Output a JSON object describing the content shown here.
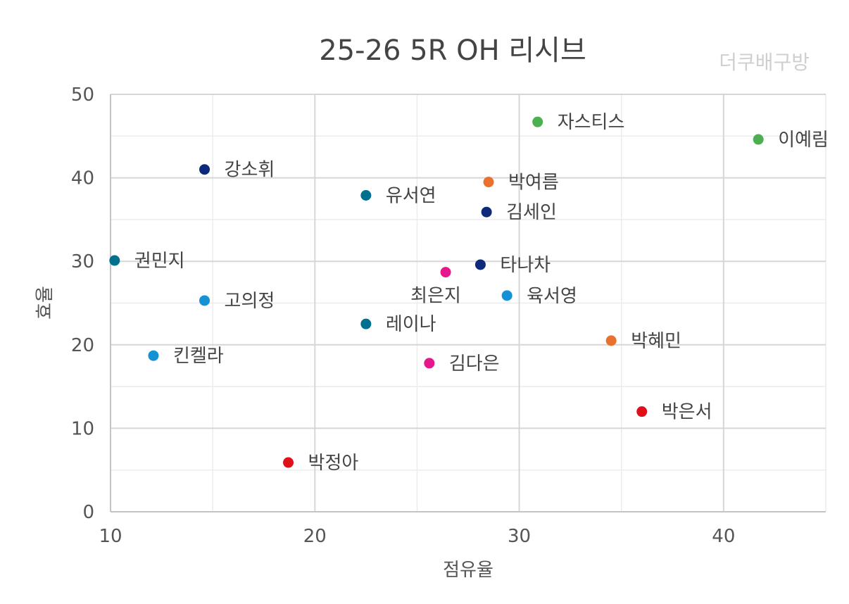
{
  "chart_data": {
    "type": "scatter",
    "title": "25-26 5R OH 리시브",
    "watermark": "더쿠배구방",
    "xlabel": "점유율",
    "ylabel": "효율",
    "xlim": [
      10,
      45
    ],
    "ylim": [
      0,
      50
    ],
    "x_ticks": [
      10,
      20,
      30,
      40
    ],
    "y_ticks": [
      0,
      10,
      20,
      30,
      40,
      50
    ],
    "x_minor_gridlines": [
      15,
      25,
      35,
      45
    ],
    "y_minor_gridlines": [
      5,
      15,
      25,
      35,
      45
    ],
    "grid": true,
    "points": [
      {
        "label": "자스티스",
        "x": 30.9,
        "y": 46.7,
        "color": "#4caf50"
      },
      {
        "label": "이예림",
        "x": 41.7,
        "y": 44.6,
        "color": "#4caf50"
      },
      {
        "label": "강소휘",
        "x": 14.6,
        "y": 41.0,
        "color": "#0d2a7a"
      },
      {
        "label": "박여름",
        "x": 28.5,
        "y": 39.5,
        "color": "#e8712e"
      },
      {
        "label": "유서연",
        "x": 22.5,
        "y": 37.9,
        "color": "#00708f"
      },
      {
        "label": "김세인",
        "x": 28.4,
        "y": 35.9,
        "color": "#0d2a7a"
      },
      {
        "label": "권민지",
        "x": 10.2,
        "y": 30.1,
        "color": "#00708f"
      },
      {
        "label": "타나차",
        "x": 28.1,
        "y": 29.6,
        "color": "#0d2a7a"
      },
      {
        "label": "최은지",
        "x": 26.4,
        "y": 28.7,
        "color": "#e6178c"
      },
      {
        "label": "육서영",
        "x": 29.4,
        "y": 25.9,
        "color": "#1591d6"
      },
      {
        "label": "고의정",
        "x": 14.6,
        "y": 25.3,
        "color": "#1591d6"
      },
      {
        "label": "레이나",
        "x": 22.5,
        "y": 22.5,
        "color": "#00708f"
      },
      {
        "label": "박혜민",
        "x": 34.5,
        "y": 20.5,
        "color": "#e8712e"
      },
      {
        "label": "킨켈라",
        "x": 12.1,
        "y": 18.7,
        "color": "#1591d6"
      },
      {
        "label": "김다은",
        "x": 25.6,
        "y": 17.8,
        "color": "#e6178c"
      },
      {
        "label": "박은서",
        "x": 36.0,
        "y": 12.0,
        "color": "#e0101a"
      },
      {
        "label": "박정아",
        "x": 18.7,
        "y": 5.9,
        "color": "#e0101a"
      }
    ]
  }
}
